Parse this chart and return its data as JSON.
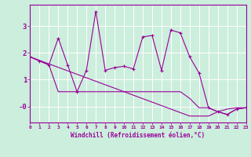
{
  "x": [
    0,
    1,
    2,
    3,
    4,
    5,
    6,
    7,
    8,
    9,
    10,
    11,
    12,
    13,
    14,
    15,
    16,
    17,
    18,
    19,
    20,
    21,
    22,
    23
  ],
  "y_main": [
    1.85,
    1.7,
    1.55,
    2.55,
    1.55,
    0.55,
    1.35,
    3.55,
    1.35,
    1.45,
    1.5,
    1.4,
    2.6,
    2.65,
    1.35,
    2.85,
    2.75,
    1.85,
    1.25,
    -0.05,
    -0.2,
    -0.3,
    -0.1,
    -0.05
  ],
  "y_low": [
    1.85,
    1.7,
    1.55,
    0.55,
    0.55,
    0.55,
    0.55,
    0.55,
    0.55,
    0.55,
    0.55,
    0.55,
    0.55,
    0.55,
    0.55,
    0.55,
    0.55,
    0.3,
    -0.05,
    -0.05,
    -0.2,
    -0.3,
    -0.1,
    -0.05
  ],
  "y_trend": [
    1.85,
    1.72,
    1.59,
    1.46,
    1.33,
    1.2,
    1.07,
    0.94,
    0.81,
    0.68,
    0.55,
    0.42,
    0.29,
    0.16,
    0.03,
    -0.1,
    -0.23,
    -0.36,
    -0.36,
    -0.36,
    -0.2,
    -0.1,
    -0.05,
    -0.05
  ],
  "color": "#990099",
  "bg_color": "#cceedd",
  "xlabel": "Windchill (Refroidissement éolien,°C)",
  "xlim": [
    0,
    23
  ],
  "ylim": [
    -0.6,
    3.8
  ],
  "xticks": [
    0,
    1,
    2,
    3,
    4,
    5,
    6,
    7,
    8,
    9,
    10,
    11,
    12,
    13,
    14,
    15,
    16,
    17,
    18,
    19,
    20,
    21,
    22,
    23
  ],
  "yticks": [
    0,
    1,
    2,
    3
  ],
  "ytick_labels": [
    "-0",
    "1",
    "2",
    "3"
  ]
}
